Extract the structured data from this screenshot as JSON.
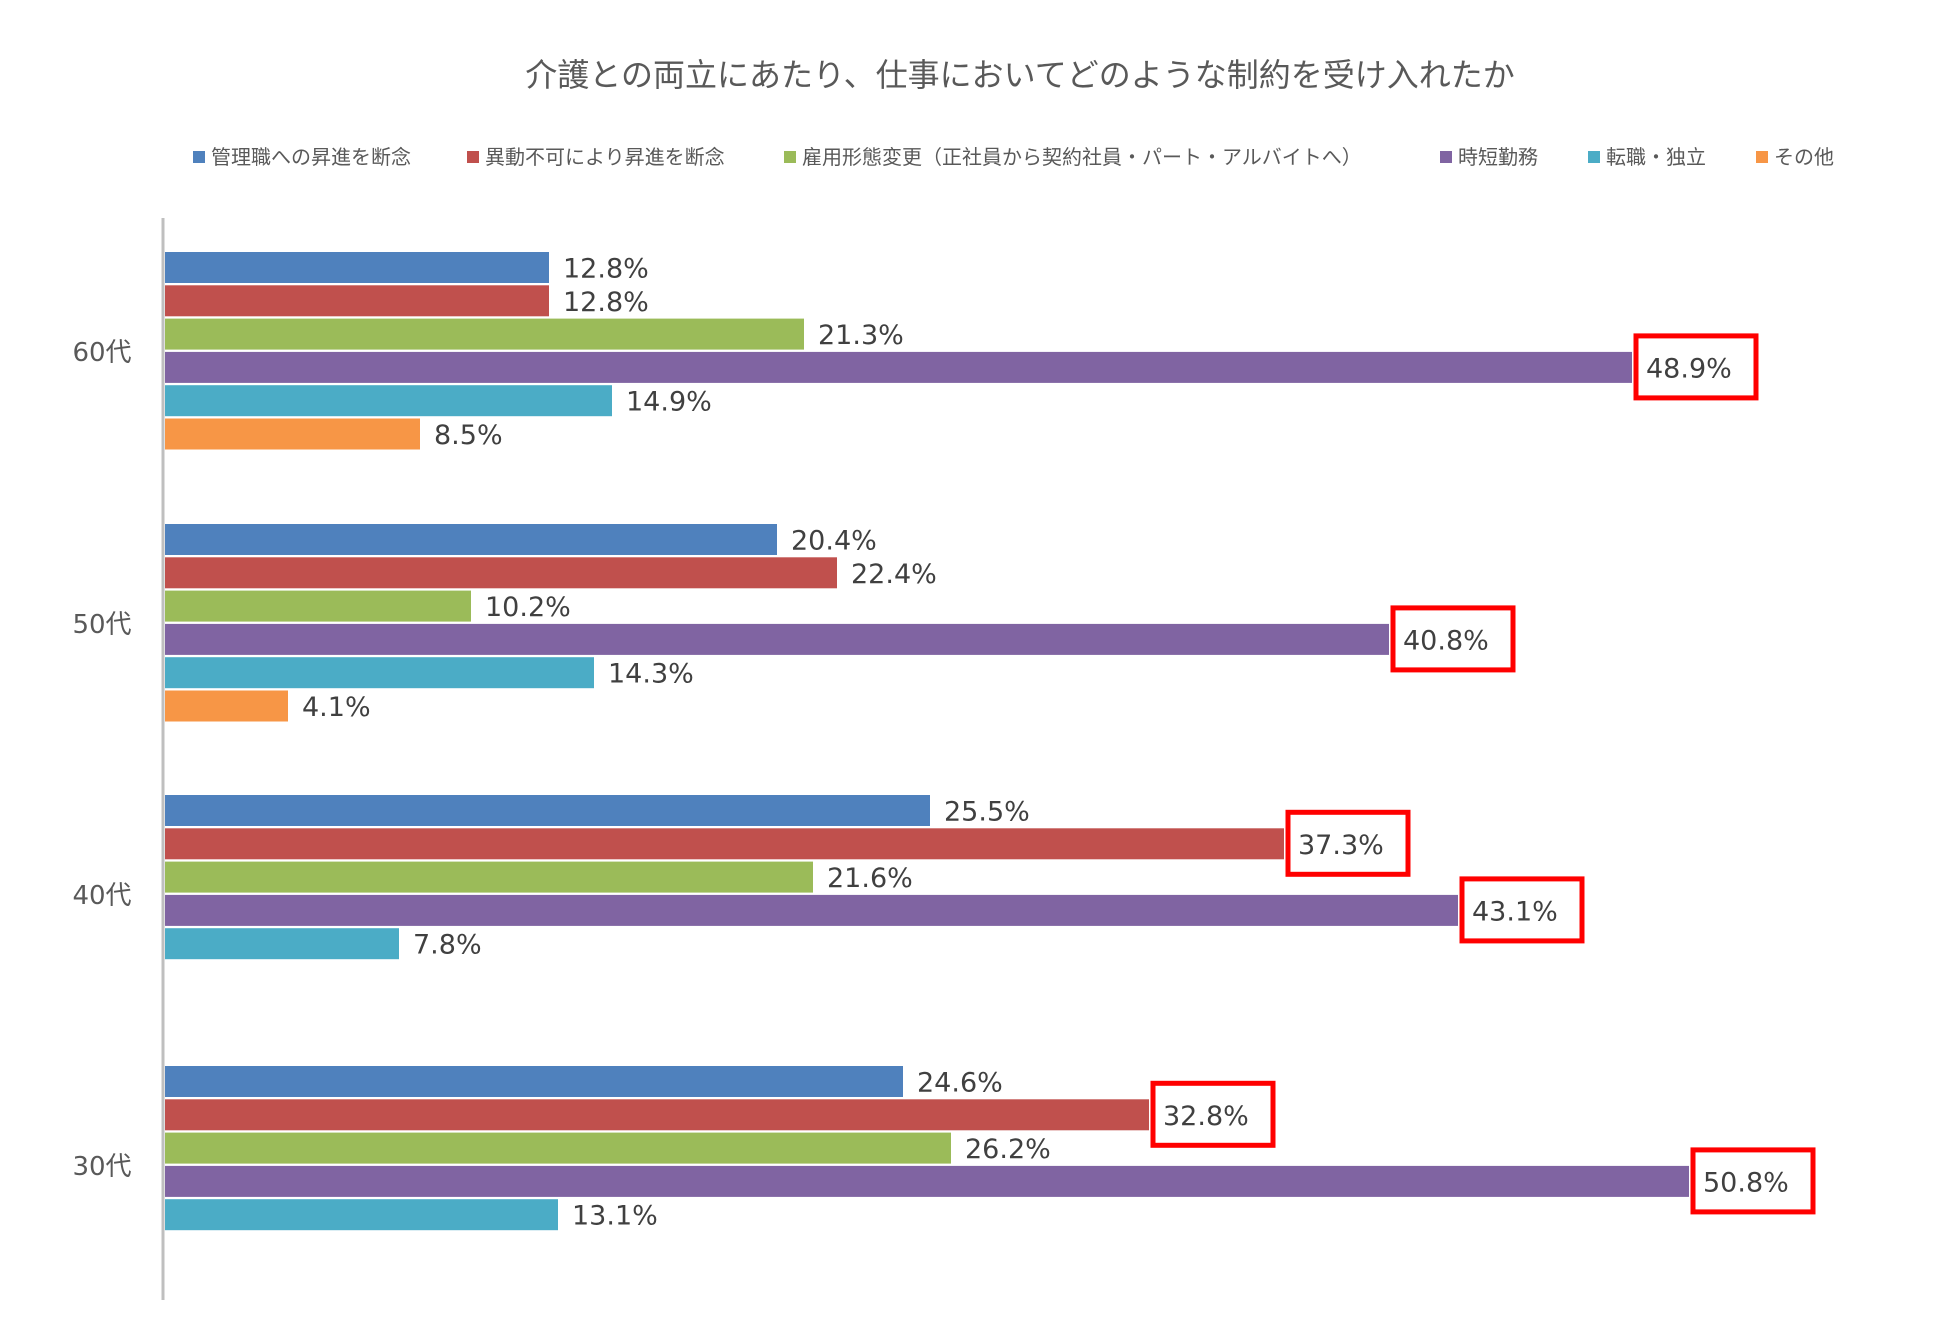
{
  "chart_data": {
    "type": "bar",
    "orientation": "horizontal",
    "title": "介護との両立にあたり、仕事においてどのような制約を受け入れたか",
    "legend_position": "top",
    "grid": false,
    "xlim": [
      0,
      52
    ],
    "categories": [
      "60代",
      "50代",
      "40代",
      "30代"
    ],
    "series": [
      {
        "name": "管理職への昇進を断念",
        "color": "#4F81BD",
        "values": [
          12.8,
          20.4,
          25.5,
          24.6
        ],
        "labels": [
          "12.8%",
          "20.4%",
          "25.5%",
          "24.6%"
        ]
      },
      {
        "name": "異動不可により昇進を断念",
        "color": "#C0504D",
        "values": [
          12.8,
          22.4,
          37.3,
          32.8
        ],
        "labels": [
          "12.8%",
          "22.4%",
          "37.3%",
          "32.8%"
        ]
      },
      {
        "name": "雇用形態変更（正社員から契約社員・パート・アルバイトへ）",
        "color": "#9BBB59",
        "values": [
          21.3,
          10.2,
          21.6,
          26.2
        ],
        "labels": [
          "21.3%",
          "10.2%",
          "21.6%",
          "26.2%"
        ]
      },
      {
        "name": "時短勤務",
        "color": "#8064A2",
        "values": [
          48.9,
          40.8,
          43.1,
          50.8
        ],
        "labels": [
          "48.9%",
          "40.8%",
          "43.1%",
          "50.8%"
        ]
      },
      {
        "name": "転職・独立",
        "color": "#4BACC6",
        "values": [
          14.9,
          14.3,
          7.8,
          13.1
        ],
        "labels": [
          "14.9%",
          "14.3%",
          "7.8%",
          "13.1%"
        ]
      },
      {
        "name": "その他",
        "color": "#F79646",
        "values": [
          8.5,
          4.1,
          null,
          null
        ],
        "labels": [
          "8.5%",
          "4.1%",
          "",
          ""
        ]
      }
    ],
    "highlighted_labels": [
      "48.9%",
      "40.8%",
      "37.3%",
      "43.1%",
      "32.8%",
      "50.8%"
    ],
    "highlight_color": "#FF0000",
    "axis_color": "#BFBFBF",
    "text_color": "#404040"
  }
}
